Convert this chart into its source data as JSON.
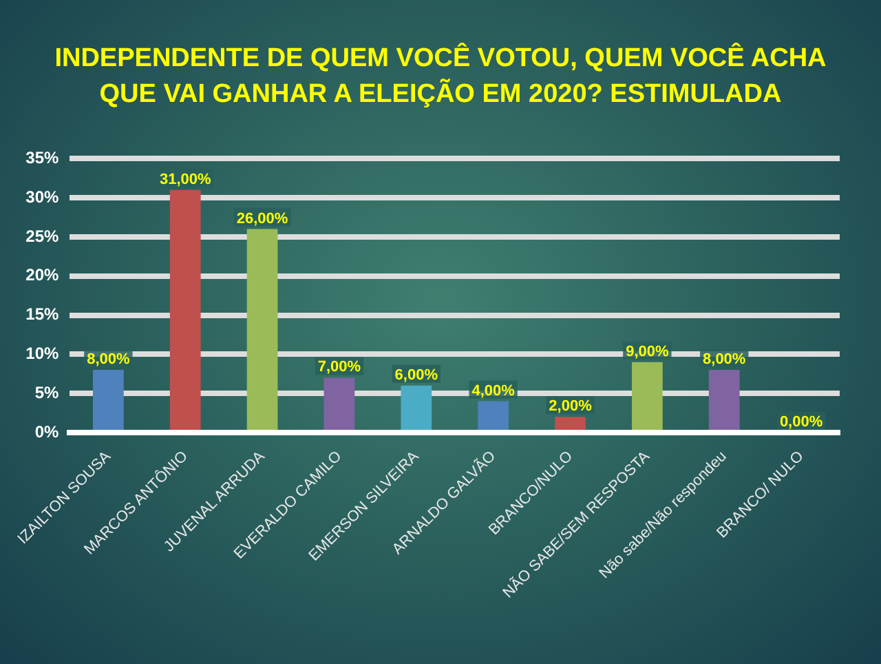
{
  "chart_data": {
    "type": "bar",
    "title": "INDEPENDENTE DE QUEM VOCÊ VOTOU, QUEM VOCÊ ACHA QUE VAI GANHAR A ELEIÇÃO EM 2020? ESTIMULADA",
    "categories": [
      "IZAILTON SOUSA",
      "MARCOS ANTÔNIO",
      "JUVENAL ARRUDA",
      "EVERALDO CAMILO",
      "EMERSON SILVEIRA",
      "ARNALDO GALVÃO",
      "BRANCO/NULO",
      "NÃO SABE/SEM RESPOSTA",
      "Não sabe/Não respondeu",
      "BRANCO/ NULO"
    ],
    "values": [
      8,
      31,
      26,
      7,
      6,
      4,
      2,
      9,
      8,
      0
    ],
    "value_labels": [
      "8,00%",
      "31,00%",
      "26,00%",
      "7,00%",
      "6,00%",
      "4,00%",
      "2,00%",
      "9,00%",
      "8,00%",
      "0,00%"
    ],
    "colors": [
      "#4f81bd",
      "#c0504d",
      "#9bbb59",
      "#8064a2",
      "#4bacc6",
      "#4f81bd",
      "#c0504d",
      "#9bbb59",
      "#8064a2",
      "#4bacc6"
    ],
    "ylim": [
      0,
      35
    ],
    "yticks": [
      {
        "value": 0,
        "label": "0%"
      },
      {
        "value": 5,
        "label": "5%"
      },
      {
        "value": 10,
        "label": "10%"
      },
      {
        "value": 15,
        "label": "15%"
      },
      {
        "value": 20,
        "label": "20%"
      },
      {
        "value": 25,
        "label": "25%"
      },
      {
        "value": 30,
        "label": "30%"
      },
      {
        "value": 35,
        "label": "35%"
      }
    ],
    "grid": "y",
    "legend": false
  }
}
